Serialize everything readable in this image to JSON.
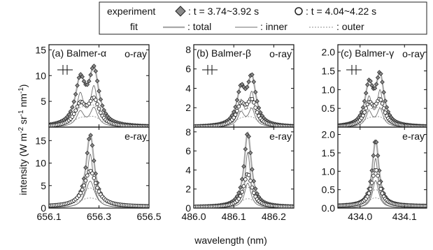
{
  "legend": {
    "row1_label": "experiment",
    "marker_a_label": ": t = 3.74~3.92 s",
    "marker_b_label": ": t = 4.04~4.22 s",
    "row2_label": "fit",
    "total_label": ": total",
    "inner_label": ": inner",
    "outer_label": ": outer"
  },
  "colors": {
    "marker_a": "#8a8a8a",
    "marker_b": "#ffffff",
    "total_line": "#a8a8a8",
    "inner_line": "#6f6f6f",
    "outer_line": "#8f8f8f",
    "frame": "#111111"
  },
  "axis": {
    "xlabel": "wavelength (nm)",
    "ylabel": "intensity (W m-2 sr-1 nm-1)"
  },
  "chart_data": [
    {
      "type": "line",
      "panel": "(a) Balmer-α",
      "ray": "o-ray",
      "xlim": [
        656.1,
        656.5
      ],
      "xticks": [
        656.1,
        656.3,
        656.5
      ],
      "ylim": [
        0,
        16
      ],
      "yticks": [
        0,
        5,
        10,
        15
      ],
      "peaks": {
        "blue": 656.225,
        "red": 656.28
      },
      "series": [
        {
          "name": ": t = 3.74~3.92 s",
          "amplitude_blue": 8.5,
          "amplitude_red": 10.5,
          "width": 0.024,
          "baseline": 0.0
        },
        {
          "name": ": t = 4.04~4.22 s",
          "amplitude_blue": 4.0,
          "amplitude_red": 5.0,
          "width": 0.026,
          "baseline": 0.0
        }
      ]
    },
    {
      "type": "line",
      "panel": "(b) Balmer-β",
      "ray": "o-ray",
      "xlim": [
        486.0,
        486.25
      ],
      "xticks": [
        486.0,
        486.1,
        486.2
      ],
      "ylim": [
        0,
        8.5
      ],
      "yticks": [
        0,
        2,
        4,
        6,
        8
      ],
      "peaks": {
        "blue": 486.118,
        "red": 486.145
      },
      "series": [
        {
          "name": ": t = 3.74~3.92 s",
          "amplitude_blue": 3.5,
          "amplitude_red": 4.8,
          "width": 0.013,
          "baseline": 0.0
        },
        {
          "name": ": t = 4.04~4.22 s",
          "amplitude_blue": 2.0,
          "amplitude_red": 2.5,
          "width": 0.014,
          "baseline": 0.0
        }
      ]
    },
    {
      "type": "line",
      "panel": "(c) Balmer-γ",
      "ray": "o-ray",
      "xlim": [
        433.95,
        434.15
      ],
      "xticks": [
        434.0,
        434.1
      ],
      "ylim": [
        0,
        2.2
      ],
      "yticks": [
        0.0,
        0.5,
        1.0,
        1.5,
        2.0
      ],
      "peaks": {
        "blue": 434.02,
        "red": 434.045
      },
      "series": [
        {
          "name": ": t = 3.74~3.92 s",
          "amplitude_blue": 1.05,
          "amplitude_red": 1.3,
          "width": 0.011,
          "baseline": 0.0
        },
        {
          "name": ": t = 4.04~4.22 s",
          "amplitude_blue": 0.55,
          "amplitude_red": 0.65,
          "width": 0.012,
          "baseline": 0.0
        }
      ]
    },
    {
      "type": "line",
      "panel": "(a) Balmer-α",
      "ray": "e-ray",
      "xlim": [
        656.1,
        656.5
      ],
      "xticks": [
        656.1,
        656.3,
        656.5
      ],
      "ylim": [
        0,
        18
      ],
      "yticks": [
        0,
        5,
        10,
        15
      ],
      "peaks": {
        "center": 656.265
      },
      "series": [
        {
          "name": ": t = 3.74~3.92 s",
          "amplitude": 16.0,
          "width": 0.02,
          "baseline": 0.3
        },
        {
          "name": ": t = 4.04~4.22 s",
          "amplitude": 8.0,
          "width": 0.03,
          "baseline": 0.3
        }
      ]
    },
    {
      "type": "line",
      "panel": "(b) Balmer-β",
      "ray": "e-ray",
      "xlim": [
        486.0,
        486.25
      ],
      "xticks": [
        486.0,
        486.1,
        486.2
      ],
      "ylim": [
        0,
        8.5
      ],
      "yticks": [
        0,
        2,
        4,
        6,
        8
      ],
      "peaks": {
        "center": 486.135
      },
      "series": [
        {
          "name": ": t = 3.74~3.92 s",
          "amplitude": 7.8,
          "width": 0.011,
          "baseline": 0.1
        },
        {
          "name": ": t = 4.04~4.22 s",
          "amplitude": 3.5,
          "width": 0.013,
          "baseline": 0.1
        }
      ]
    },
    {
      "type": "line",
      "panel": "(c) Balmer-γ",
      "ray": "e-ray",
      "xlim": [
        433.95,
        434.15
      ],
      "xticks": [
        434.0,
        434.1
      ],
      "ylim": [
        0,
        2.2
      ],
      "yticks": [
        0.0,
        0.5,
        1.0,
        1.5,
        2.0
      ],
      "peaks": {
        "center": 434.035
      },
      "series": [
        {
          "name": ": t = 3.74~3.92 s",
          "amplitude": 1.8,
          "width": 0.009,
          "baseline": 0.05
        },
        {
          "name": ": t = 4.04~4.22 s",
          "amplitude": 1.0,
          "width": 0.011,
          "baseline": 0.05
        }
      ]
    }
  ]
}
